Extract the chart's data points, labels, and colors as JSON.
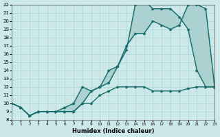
{
  "xlabel": "Humidex (Indice chaleur)",
  "ylabel": "",
  "xlim": [
    0,
    23
  ],
  "ylim": [
    8,
    22
  ],
  "xticks": [
    0,
    1,
    2,
    3,
    4,
    5,
    6,
    7,
    8,
    9,
    10,
    11,
    12,
    13,
    14,
    15,
    16,
    17,
    18,
    19,
    20,
    21,
    22,
    23
  ],
  "yticks": [
    8,
    9,
    10,
    11,
    12,
    13,
    14,
    15,
    16,
    17,
    18,
    19,
    20,
    21,
    22
  ],
  "bg_color": "#cce8e8",
  "line_color": "#1a6b6b",
  "grid_color": "#aad4d4",
  "line1_x": [
    0,
    1,
    2,
    3,
    4,
    5,
    6,
    7,
    8,
    9,
    10,
    11,
    12,
    13,
    14,
    15,
    16,
    17,
    18,
    19,
    20,
    21,
    22,
    23
  ],
  "line1_y": [
    10,
    9.5,
    8.5,
    9,
    9,
    9,
    9,
    9,
    10,
    10,
    11,
    11.5,
    12,
    12,
    12,
    12,
    11.5,
    11.5,
    11.5,
    11.5,
    11.8,
    12,
    12,
    12
  ],
  "line2_x": [
    0,
    1,
    2,
    3,
    4,
    5,
    6,
    7,
    8,
    9,
    10,
    11,
    12,
    13,
    14,
    15,
    16,
    17,
    18,
    19,
    20,
    21,
    22,
    23
  ],
  "line2_y": [
    10,
    9.5,
    8.5,
    9,
    9,
    9,
    9,
    9,
    10,
    11.5,
    12,
    14,
    14.5,
    17,
    18.5,
    18.5,
    20,
    19.5,
    19,
    19.5,
    22,
    22,
    21.5,
    12
  ],
  "line3_x": [
    0,
    1,
    2,
    3,
    4,
    5,
    6,
    7,
    8,
    9,
    10,
    11,
    12,
    13,
    14,
    15,
    16,
    17,
    18,
    19,
    20,
    21,
    22,
    23
  ],
  "line3_y": [
    10,
    9.5,
    8.5,
    9,
    9,
    9,
    9.5,
    10,
    12,
    11.5,
    12,
    12.5,
    14.5,
    16.5,
    22,
    22.5,
    21.5,
    21.5,
    21.5,
    20.5,
    19,
    14,
    12,
    12
  ]
}
